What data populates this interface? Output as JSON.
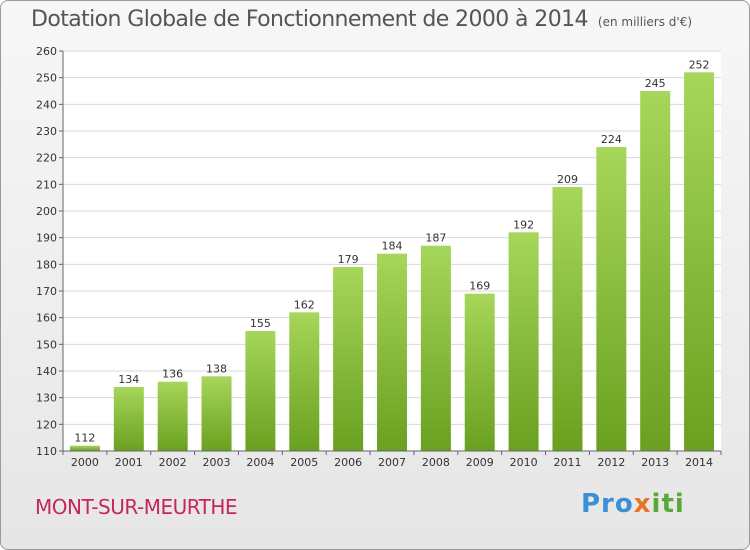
{
  "title": "Dotation Globale de Fonctionnement de 2000 à 2014",
  "unit_note": "(en milliers d'€)",
  "town": "MONT-SUR-MEURTHE",
  "logo": {
    "part1": "Pro",
    "part2": "x",
    "part3": "iti"
  },
  "colors": {
    "bar_light": "#a6d65a",
    "bar_dark": "#6aa020",
    "title": "#555555",
    "town": "#c8265a"
  },
  "chart_data": {
    "type": "bar",
    "title": "Dotation Globale de Fonctionnement de 2000 à 2014",
    "xlabel": "",
    "ylabel": "",
    "categories": [
      "2000",
      "2001",
      "2002",
      "2003",
      "2004",
      "2005",
      "2006",
      "2007",
      "2008",
      "2009",
      "2010",
      "2011",
      "2012",
      "2013",
      "2014"
    ],
    "values": [
      112,
      134,
      136,
      138,
      155,
      162,
      179,
      184,
      187,
      169,
      192,
      209,
      224,
      245,
      252
    ],
    "ylim": [
      110,
      260
    ],
    "yticks": [
      110,
      120,
      130,
      140,
      150,
      160,
      170,
      180,
      190,
      200,
      210,
      220,
      230,
      240,
      250,
      260
    ],
    "grid": true
  }
}
